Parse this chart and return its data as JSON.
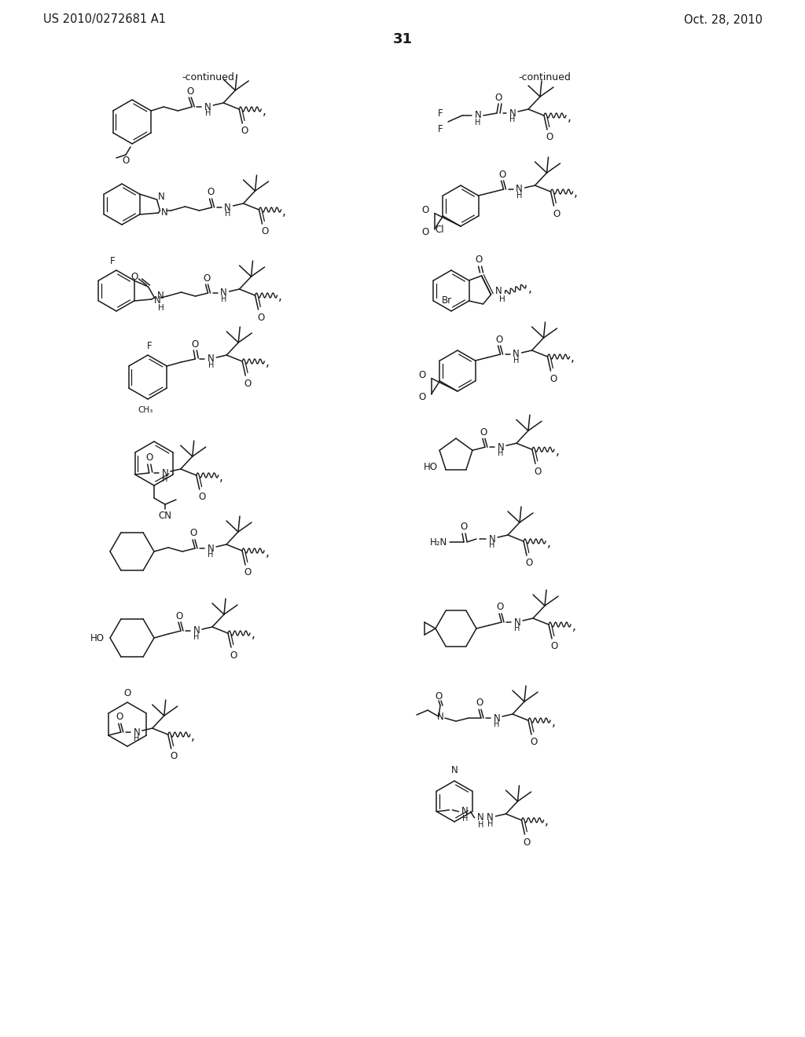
{
  "bg": "#ffffff",
  "lc": "#1a1a1a",
  "header_left": "US 2010/0272681 A1",
  "header_right": "Oct. 28, 2010",
  "page_num": "31",
  "continued": "-continued"
}
